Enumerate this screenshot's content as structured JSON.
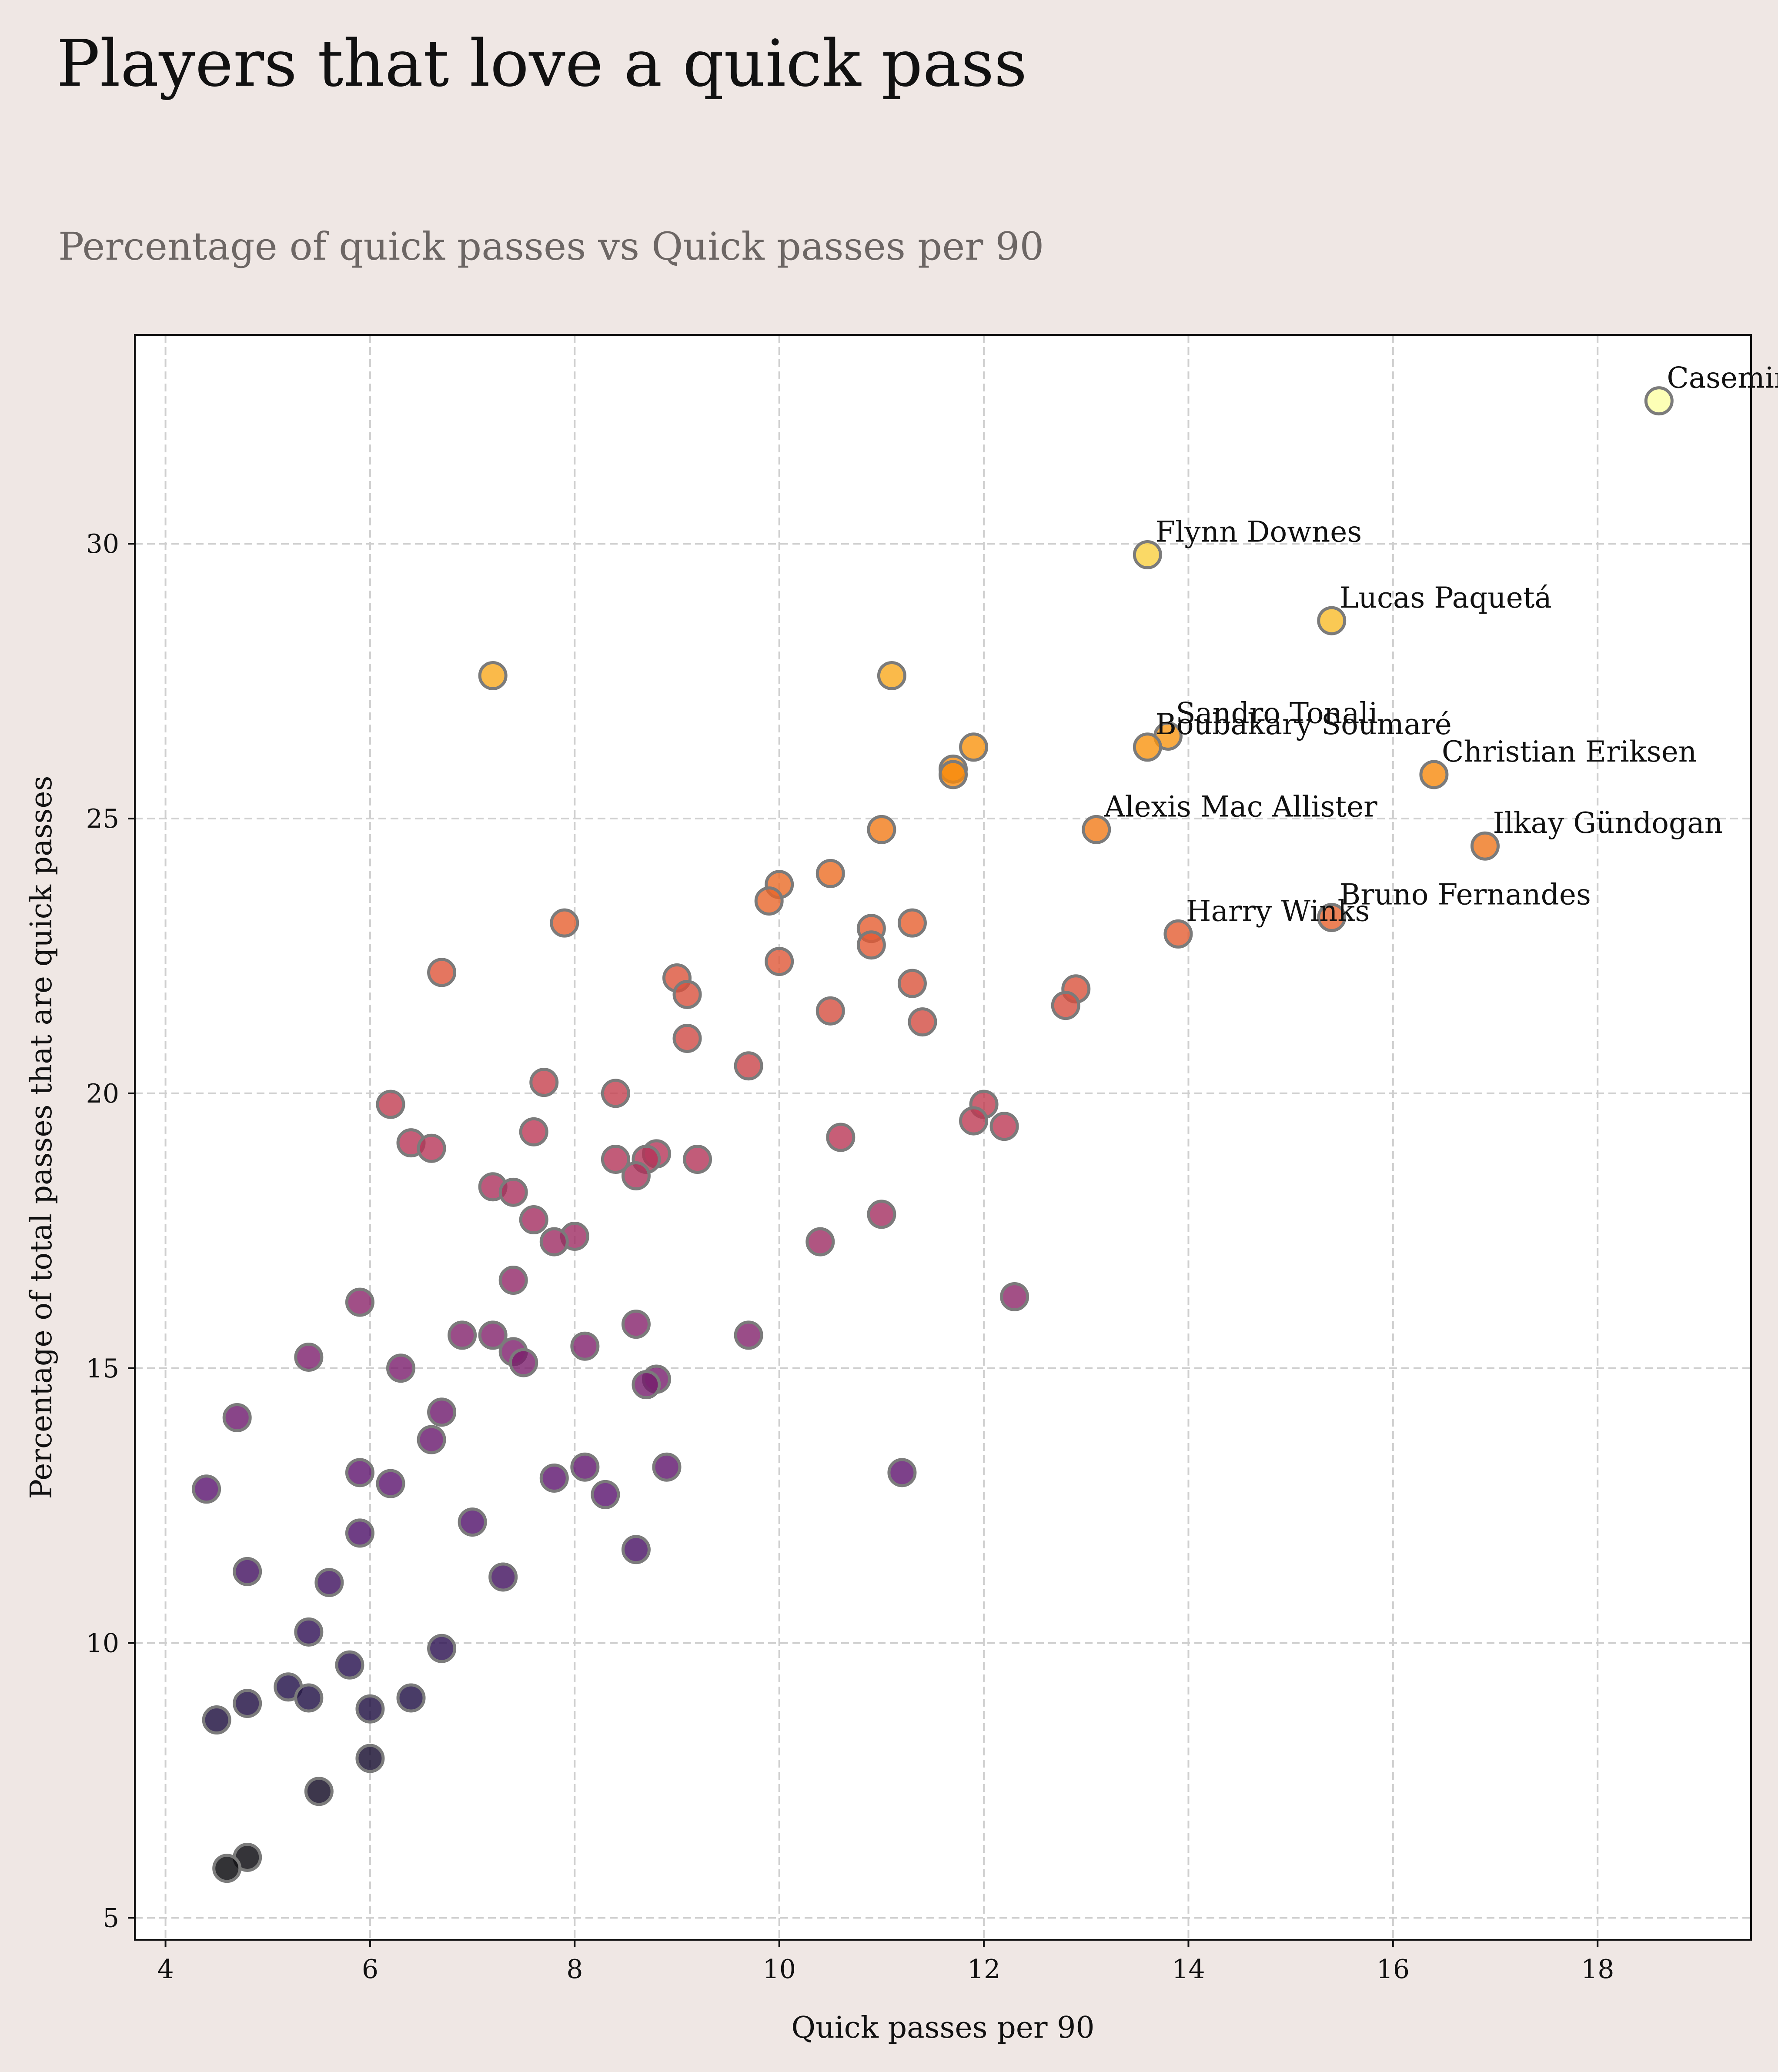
{
  "chart_data": {
    "type": "scatter",
    "title": "Players that love a quick pass",
    "subtitle": "Percentage of quick passes vs Quick passes per 90",
    "xlabel": "Quick passes per 90",
    "ylabel": "Percentage of total passes that are quick passes",
    "xlim": [
      3.7,
      19.5
    ],
    "ylim": [
      4.6,
      33.8
    ],
    "xticks": [
      4,
      6,
      8,
      10,
      12,
      14,
      16,
      18
    ],
    "yticks": [
      5,
      10,
      15,
      20,
      25,
      30
    ],
    "grid": true,
    "color_scale": "inferno",
    "color_range": [
      5.9,
      32.6
    ],
    "points": [
      {
        "x": 18.6,
        "y": 32.6,
        "label": "Casemiro"
      },
      {
        "x": 13.6,
        "y": 29.8,
        "label": "Flynn Downes"
      },
      {
        "x": 15.4,
        "y": 28.6,
        "label": "Lucas Paquetá"
      },
      {
        "x": 13.8,
        "y": 26.5,
        "label": "Sandro Tonali"
      },
      {
        "x": 13.6,
        "y": 26.3,
        "label": "Boubakary Soumaré"
      },
      {
        "x": 16.4,
        "y": 25.8,
        "label": "Christian Eriksen"
      },
      {
        "x": 13.1,
        "y": 24.8,
        "label": "Alexis Mac Allister"
      },
      {
        "x": 16.9,
        "y": 24.5,
        "label": "Ilkay Gündogan"
      },
      {
        "x": 15.4,
        "y": 23.2,
        "label": "Bruno Fernandes"
      },
      {
        "x": 13.9,
        "y": 22.9,
        "label": "Harry Winks"
      },
      {
        "x": 7.2,
        "y": 27.6
      },
      {
        "x": 11.1,
        "y": 27.6
      },
      {
        "x": 11.9,
        "y": 26.3
      },
      {
        "x": 11.7,
        "y": 25.9
      },
      {
        "x": 11.7,
        "y": 25.8
      },
      {
        "x": 11.0,
        "y": 24.8
      },
      {
        "x": 10.5,
        "y": 24.0
      },
      {
        "x": 10.0,
        "y": 23.8
      },
      {
        "x": 9.9,
        "y": 23.5
      },
      {
        "x": 7.9,
        "y": 23.1
      },
      {
        "x": 11.3,
        "y": 23.1
      },
      {
        "x": 10.9,
        "y": 23.0
      },
      {
        "x": 10.9,
        "y": 22.7
      },
      {
        "x": 10.0,
        "y": 22.4
      },
      {
        "x": 6.7,
        "y": 22.2
      },
      {
        "x": 9.0,
        "y": 22.1
      },
      {
        "x": 11.3,
        "y": 22.0
      },
      {
        "x": 12.9,
        "y": 21.9
      },
      {
        "x": 9.1,
        "y": 21.8
      },
      {
        "x": 12.8,
        "y": 21.6
      },
      {
        "x": 10.5,
        "y": 21.5
      },
      {
        "x": 11.4,
        "y": 21.3
      },
      {
        "x": 9.1,
        "y": 21.0
      },
      {
        "x": 9.7,
        "y": 20.5
      },
      {
        "x": 7.7,
        "y": 20.2
      },
      {
        "x": 8.4,
        "y": 20.0
      },
      {
        "x": 12.0,
        "y": 19.8
      },
      {
        "x": 6.2,
        "y": 19.8
      },
      {
        "x": 11.9,
        "y": 19.5
      },
      {
        "x": 12.2,
        "y": 19.4
      },
      {
        "x": 7.6,
        "y": 19.3
      },
      {
        "x": 10.6,
        "y": 19.2
      },
      {
        "x": 6.4,
        "y": 19.1
      },
      {
        "x": 6.6,
        "y": 19.0
      },
      {
        "x": 8.8,
        "y": 18.9
      },
      {
        "x": 9.2,
        "y": 18.8
      },
      {
        "x": 8.4,
        "y": 18.8
      },
      {
        "x": 8.7,
        "y": 18.8
      },
      {
        "x": 8.6,
        "y": 18.5
      },
      {
        "x": 7.2,
        "y": 18.3
      },
      {
        "x": 7.4,
        "y": 18.2
      },
      {
        "x": 11.0,
        "y": 17.8
      },
      {
        "x": 7.6,
        "y": 17.7
      },
      {
        "x": 8.0,
        "y": 17.4
      },
      {
        "x": 10.4,
        "y": 17.3
      },
      {
        "x": 7.8,
        "y": 17.3
      },
      {
        "x": 7.4,
        "y": 16.6
      },
      {
        "x": 12.3,
        "y": 16.3
      },
      {
        "x": 5.9,
        "y": 16.2
      },
      {
        "x": 8.6,
        "y": 15.8
      },
      {
        "x": 9.7,
        "y": 15.6
      },
      {
        "x": 7.2,
        "y": 15.6
      },
      {
        "x": 6.9,
        "y": 15.6
      },
      {
        "x": 8.1,
        "y": 15.4
      },
      {
        "x": 7.4,
        "y": 15.3
      },
      {
        "x": 5.4,
        "y": 15.2
      },
      {
        "x": 7.5,
        "y": 15.1
      },
      {
        "x": 6.3,
        "y": 15.0
      },
      {
        "x": 8.8,
        "y": 14.8
      },
      {
        "x": 8.7,
        "y": 14.7
      },
      {
        "x": 6.7,
        "y": 14.2
      },
      {
        "x": 4.7,
        "y": 14.1
      },
      {
        "x": 6.6,
        "y": 13.7
      },
      {
        "x": 8.1,
        "y": 13.2
      },
      {
        "x": 8.9,
        "y": 13.2
      },
      {
        "x": 11.2,
        "y": 13.1
      },
      {
        "x": 5.9,
        "y": 13.1
      },
      {
        "x": 7.8,
        "y": 13.0
      },
      {
        "x": 6.2,
        "y": 12.9
      },
      {
        "x": 4.4,
        "y": 12.8
      },
      {
        "x": 8.3,
        "y": 12.7
      },
      {
        "x": 7.0,
        "y": 12.2
      },
      {
        "x": 5.9,
        "y": 12.0
      },
      {
        "x": 8.6,
        "y": 11.7
      },
      {
        "x": 4.8,
        "y": 11.3
      },
      {
        "x": 7.3,
        "y": 11.2
      },
      {
        "x": 5.6,
        "y": 11.1
      },
      {
        "x": 5.4,
        "y": 10.2
      },
      {
        "x": 6.7,
        "y": 9.9
      },
      {
        "x": 5.8,
        "y": 9.6
      },
      {
        "x": 5.2,
        "y": 9.2
      },
      {
        "x": 6.4,
        "y": 9.0
      },
      {
        "x": 5.4,
        "y": 9.0
      },
      {
        "x": 4.8,
        "y": 8.9
      },
      {
        "x": 6.0,
        "y": 8.8
      },
      {
        "x": 4.5,
        "y": 8.6
      },
      {
        "x": 6.0,
        "y": 7.9
      },
      {
        "x": 5.5,
        "y": 7.3
      },
      {
        "x": 4.8,
        "y": 6.1
      },
      {
        "x": 4.6,
        "y": 5.9
      }
    ]
  }
}
